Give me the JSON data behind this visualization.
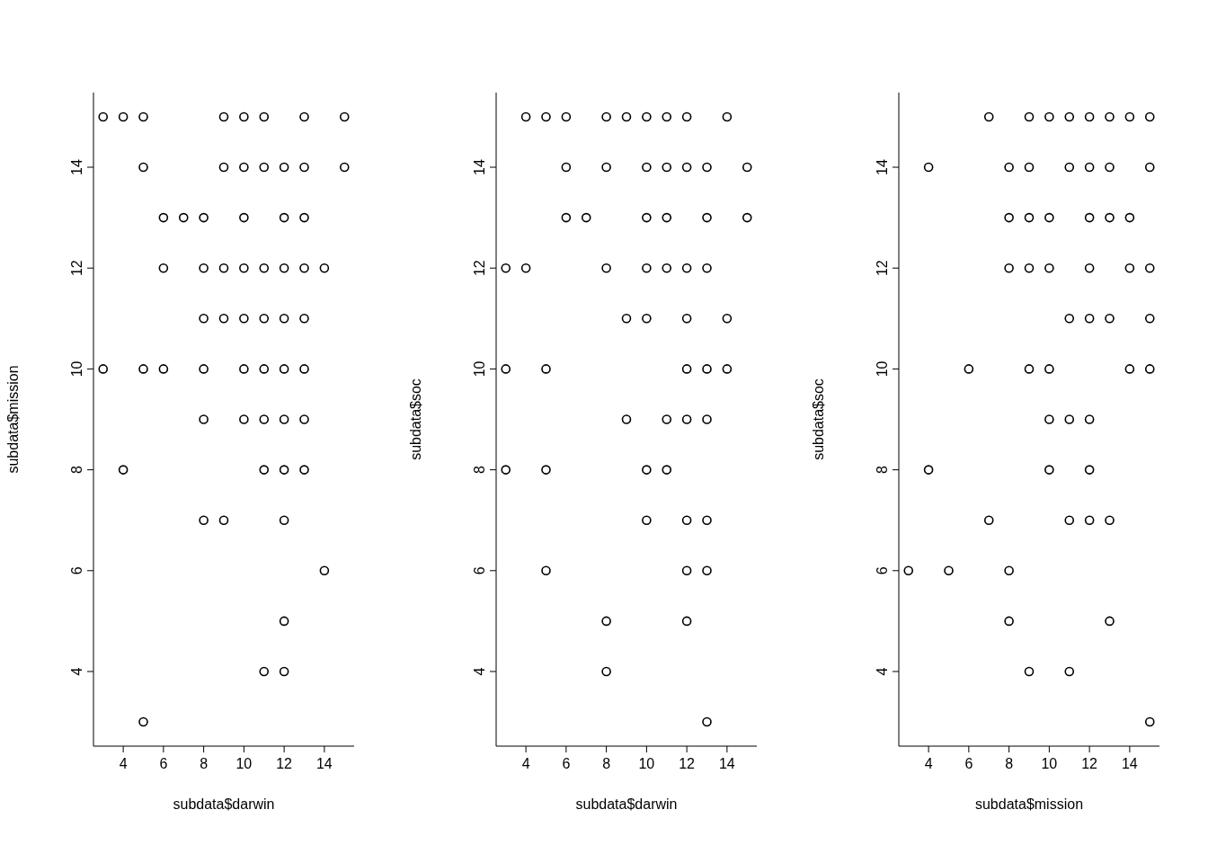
{
  "chart_data": [
    {
      "type": "scatter",
      "xlabel": "subdata$darwin",
      "ylabel": "subdata$mission",
      "color": "#000000",
      "marker": "circle",
      "grid": false,
      "xlim": [
        2.52,
        15.48
      ],
      "ylim": [
        2.52,
        15.48
      ],
      "xticks": [
        4,
        6,
        8,
        10,
        12,
        14
      ],
      "yticks": [
        4,
        6,
        8,
        10,
        12,
        14
      ],
      "x": [
        3,
        4,
        5,
        9,
        10,
        11,
        13,
        15,
        5,
        9,
        10,
        11,
        12,
        13,
        15,
        6,
        7,
        8,
        10,
        12,
        13,
        6,
        8,
        9,
        10,
        11,
        12,
        13,
        14,
        8,
        9,
        10,
        11,
        12,
        13,
        3,
        5,
        6,
        8,
        10,
        11,
        12,
        13,
        8,
        10,
        11,
        12,
        13,
        4,
        11,
        12,
        13,
        8,
        9,
        12,
        14,
        12,
        11,
        12,
        5
      ],
      "values": [
        15,
        15,
        15,
        15,
        15,
        15,
        15,
        15,
        14,
        14,
        14,
        14,
        14,
        14,
        14,
        13,
        13,
        13,
        13,
        13,
        13,
        12,
        12,
        12,
        12,
        12,
        12,
        12,
        12,
        11,
        11,
        11,
        11,
        11,
        11,
        10,
        10,
        10,
        10,
        10,
        10,
        10,
        10,
        9,
        9,
        9,
        9,
        9,
        8,
        8,
        8,
        8,
        7,
        7,
        7,
        6,
        5,
        4,
        4,
        3
      ]
    },
    {
      "type": "scatter",
      "xlabel": "subdata$darwin",
      "ylabel": "subdata$soc",
      "color": "#000000",
      "marker": "circle",
      "grid": false,
      "xlim": [
        2.52,
        15.48
      ],
      "ylim": [
        2.52,
        15.48
      ],
      "xticks": [
        4,
        6,
        8,
        10,
        12,
        14
      ],
      "yticks": [
        4,
        6,
        8,
        10,
        12,
        14
      ],
      "x": [
        4,
        5,
        6,
        8,
        9,
        10,
        11,
        12,
        14,
        6,
        8,
        10,
        11,
        12,
        13,
        15,
        6,
        7,
        10,
        11,
        13,
        15,
        3,
        4,
        8,
        10,
        11,
        12,
        13,
        9,
        10,
        12,
        14,
        3,
        5,
        12,
        13,
        14,
        9,
        11,
        12,
        13,
        3,
        5,
        10,
        11,
        10,
        12,
        13,
        5,
        12,
        13,
        8,
        12,
        8,
        13
      ],
      "values": [
        15,
        15,
        15,
        15,
        15,
        15,
        15,
        15,
        15,
        14,
        14,
        14,
        14,
        14,
        14,
        14,
        13,
        13,
        13,
        13,
        13,
        13,
        12,
        12,
        12,
        12,
        12,
        12,
        12,
        11,
        11,
        11,
        11,
        10,
        10,
        10,
        10,
        10,
        9,
        9,
        9,
        9,
        8,
        8,
        8,
        8,
        7,
        7,
        7,
        6,
        6,
        6,
        5,
        5,
        4,
        3
      ]
    },
    {
      "type": "scatter",
      "xlabel": "subdata$mission",
      "ylabel": "subdata$soc",
      "color": "#000000",
      "marker": "circle",
      "grid": false,
      "xlim": [
        2.52,
        15.48
      ],
      "ylim": [
        2.52,
        15.48
      ],
      "xticks": [
        4,
        6,
        8,
        10,
        12,
        14
      ],
      "yticks": [
        4,
        6,
        8,
        10,
        12,
        14
      ],
      "x": [
        7,
        9,
        10,
        11,
        12,
        13,
        14,
        15,
        4,
        8,
        9,
        11,
        12,
        13,
        15,
        8,
        9,
        10,
        12,
        13,
        14,
        8,
        9,
        10,
        12,
        14,
        15,
        11,
        12,
        13,
        15,
        6,
        9,
        10,
        14,
        15,
        10,
        11,
        12,
        4,
        10,
        12,
        7,
        11,
        12,
        13,
        3,
        5,
        8,
        8,
        13,
        9,
        11,
        15
      ],
      "values": [
        15,
        15,
        15,
        15,
        15,
        15,
        15,
        15,
        14,
        14,
        14,
        14,
        14,
        14,
        14,
        13,
        13,
        13,
        13,
        13,
        13,
        12,
        12,
        12,
        12,
        12,
        12,
        11,
        11,
        11,
        11,
        10,
        10,
        10,
        10,
        10,
        9,
        9,
        9,
        8,
        8,
        8,
        7,
        7,
        7,
        7,
        6,
        6,
        6,
        5,
        5,
        4,
        4,
        3
      ]
    }
  ]
}
